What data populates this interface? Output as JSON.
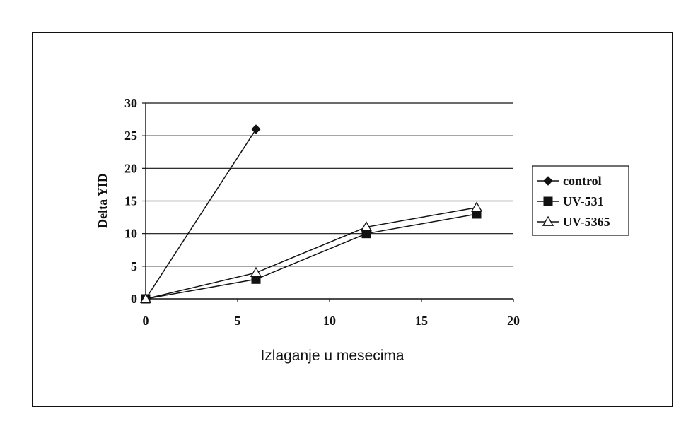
{
  "chart_data": {
    "type": "line",
    "title": "",
    "xlabel": "Izlaganje u mesecima",
    "ylabel": "Delta YID",
    "xlim": [
      0,
      20
    ],
    "ylim": [
      0,
      30
    ],
    "xticks": [
      "0",
      "5",
      "10",
      "15",
      "20"
    ],
    "yticks": [
      "0",
      "5",
      "10",
      "15",
      "20",
      "25",
      "30"
    ],
    "grid": "horizontal",
    "legend_position": "right",
    "series": [
      {
        "name": "control",
        "marker": "diamond",
        "x": [
          0,
          6
        ],
        "y": [
          0,
          26
        ]
      },
      {
        "name": "UV-531",
        "marker": "square",
        "x": [
          0,
          6,
          12,
          18
        ],
        "y": [
          0,
          3,
          10,
          13
        ]
      },
      {
        "name": "UV-5365",
        "marker": "triangle-open",
        "x": [
          0,
          6,
          12,
          18
        ],
        "y": [
          0,
          4,
          11,
          14
        ]
      }
    ]
  }
}
